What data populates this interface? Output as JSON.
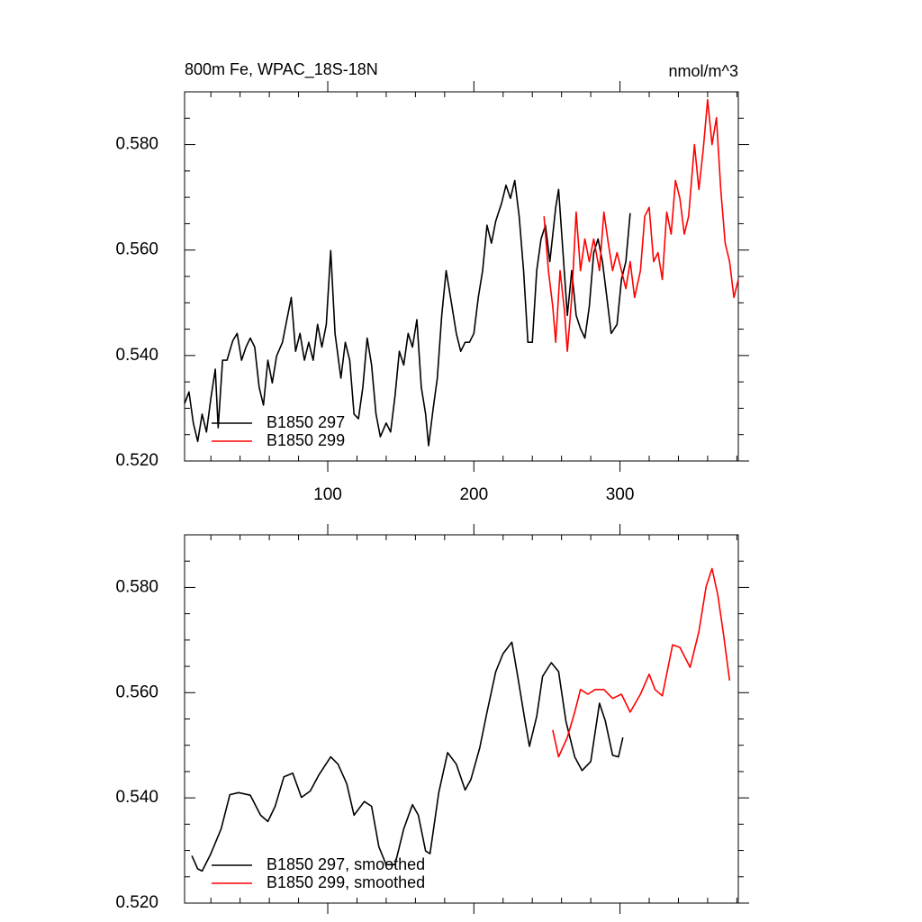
{
  "chart_data": [
    {
      "type": "line",
      "title": "800m Fe, WPAC_18S-18N",
      "units": "nmol/m^3",
      "xlim": [
        2,
        381
      ],
      "ylim": [
        0.52,
        0.59
      ],
      "xticks": [
        100,
        200,
        300
      ],
      "yticks": [
        {
          "value": 0.52,
          "label": "0.520"
        },
        {
          "value": 0.54,
          "label": "0.540"
        },
        {
          "value": 0.56,
          "label": "0.560"
        },
        {
          "value": 0.58,
          "label": "0.580"
        }
      ],
      "legend": "lower left",
      "series": [
        {
          "name": "B1850 297",
          "color": "#000000",
          "x": [
            2,
            5,
            8,
            11,
            14,
            17,
            20,
            23,
            25,
            28,
            31,
            35,
            38,
            41,
            44,
            47,
            50,
            53,
            56,
            59,
            62,
            65,
            69,
            72,
            75,
            78,
            81,
            84,
            87,
            90,
            93,
            96,
            99,
            102,
            105,
            109,
            112,
            115,
            118,
            121,
            124,
            127,
            130,
            133,
            136,
            140,
            143,
            146,
            149,
            152,
            155,
            158,
            161,
            164,
            167,
            169,
            172,
            175,
            178,
            181,
            185,
            188,
            191,
            194,
            197,
            200,
            203,
            206,
            209,
            212,
            215,
            219,
            222,
            225,
            228,
            231,
            234,
            237,
            240,
            243,
            246,
            249,
            252,
            256,
            258,
            261,
            264,
            267,
            270,
            273,
            276,
            279,
            282,
            285,
            288,
            291,
            294,
            298,
            301,
            304,
            307
          ],
          "values": [
            0.5309,
            0.5331,
            0.5272,
            0.5237,
            0.5289,
            0.5255,
            0.5319,
            0.5374,
            0.5263,
            0.5391,
            0.5391,
            0.5428,
            0.5442,
            0.5391,
            0.5416,
            0.5433,
            0.5416,
            0.534,
            0.5306,
            0.5391,
            0.5348,
            0.5399,
            0.5425,
            0.5468,
            0.551,
            0.5408,
            0.5442,
            0.5391,
            0.5425,
            0.5391,
            0.5459,
            0.5416,
            0.5459,
            0.5599,
            0.5442,
            0.5357,
            0.5425,
            0.5391,
            0.5289,
            0.528,
            0.534,
            0.5433,
            0.5382,
            0.5289,
            0.5246,
            0.5272,
            0.5255,
            0.5323,
            0.5408,
            0.5382,
            0.5442,
            0.5416,
            0.5468,
            0.534,
            0.5289,
            0.5229,
            0.5297,
            0.5357,
            0.5476,
            0.5561,
            0.5493,
            0.5442,
            0.5408,
            0.5425,
            0.5425,
            0.5442,
            0.551,
            0.5561,
            0.5647,
            0.5613,
            0.5655,
            0.5689,
            0.5723,
            0.5698,
            0.5732,
            0.5664,
            0.5561,
            0.5425,
            0.5425,
            0.5561,
            0.5621,
            0.5647,
            0.5578,
            0.5681,
            0.5715,
            0.5595,
            0.5476,
            0.5561,
            0.5476,
            0.5451,
            0.5433,
            0.5493,
            0.5595,
            0.5621,
            0.5578,
            0.551,
            0.5442,
            0.5459,
            0.5544,
            0.5578,
            0.567
          ]
        },
        {
          "name": "B1850 299",
          "color": "#ff0000",
          "x": [
            248,
            251,
            254,
            256,
            259,
            262,
            264,
            267,
            270,
            273,
            276,
            279,
            282,
            286,
            289,
            292,
            295,
            298,
            301,
            304,
            307,
            310,
            314,
            317,
            320,
            323,
            326,
            329,
            332,
            335,
            338,
            341,
            344,
            347,
            351,
            354,
            357,
            360,
            363,
            366,
            369,
            372,
            375,
            378,
            381
          ],
          "values": [
            0.5664,
            0.5561,
            0.5493,
            0.5425,
            0.5561,
            0.5485,
            0.5408,
            0.551,
            0.5672,
            0.5561,
            0.5621,
            0.5578,
            0.5621,
            0.5561,
            0.5672,
            0.5613,
            0.5561,
            0.5595,
            0.5561,
            0.5527,
            0.5578,
            0.551,
            0.5561,
            0.5664,
            0.5681,
            0.5578,
            0.5595,
            0.5544,
            0.5672,
            0.563,
            0.5732,
            0.5698,
            0.563,
            0.5664,
            0.58,
            0.5715,
            0.5792,
            0.5885,
            0.58,
            0.5851,
            0.5715,
            0.5613,
            0.5578,
            0.551,
            0.5544
          ]
        }
      ]
    },
    {
      "type": "line",
      "xlim": [
        2,
        381
      ],
      "ylim": [
        0.52,
        0.59
      ],
      "xticks": [
        100,
        200,
        300
      ],
      "yticks": [
        {
          "value": 0.52,
          "label": "0.520"
        },
        {
          "value": 0.54,
          "label": "0.540"
        },
        {
          "value": 0.56,
          "label": "0.560"
        },
        {
          "value": 0.58,
          "label": "0.580"
        }
      ],
      "legend": "lower left",
      "series": [
        {
          "name": "B1850 297, smoothed",
          "color": "#000000",
          "x": [
            7,
            11,
            14,
            20,
            27,
            33,
            39,
            47,
            54,
            59,
            64,
            70,
            76,
            82,
            88,
            94,
            102,
            107,
            113,
            118,
            125,
            130,
            135,
            140,
            146,
            152,
            158,
            162,
            167,
            170,
            176,
            182,
            188,
            194,
            198,
            204,
            209,
            215,
            220,
            226,
            230,
            235,
            238,
            243,
            247,
            253,
            258,
            263,
            269,
            274,
            280,
            286,
            290,
            295,
            299,
            302
          ],
          "values": [
            0.529,
            0.5265,
            0.5261,
            0.5294,
            0.5341,
            0.5406,
            0.541,
            0.5405,
            0.5367,
            0.5355,
            0.5384,
            0.544,
            0.5447,
            0.5401,
            0.5413,
            0.5444,
            0.5478,
            0.5464,
            0.5427,
            0.5367,
            0.5393,
            0.5384,
            0.5307,
            0.5273,
            0.5273,
            0.5341,
            0.5387,
            0.5367,
            0.5299,
            0.5294,
            0.541,
            0.5486,
            0.5464,
            0.5415,
            0.5435,
            0.5495,
            0.5563,
            0.564,
            0.5674,
            0.5696,
            0.5631,
            0.5546,
            0.5498,
            0.5555,
            0.5631,
            0.5657,
            0.564,
            0.5546,
            0.5478,
            0.5452,
            0.5469,
            0.558,
            0.5546,
            0.5481,
            0.5478,
            0.5515
          ]
        },
        {
          "name": "B1850 299, smoothed",
          "color": "#ff0000",
          "x": [
            254,
            258,
            264,
            269,
            273,
            278,
            283,
            289,
            295,
            301,
            307,
            314,
            320,
            324,
            329,
            336,
            341,
            348,
            354,
            359,
            363,
            367,
            371,
            375
          ],
          "values": [
            0.5529,
            0.5478,
            0.5515,
            0.5563,
            0.5606,
            0.5597,
            0.5606,
            0.5606,
            0.5589,
            0.5597,
            0.5563,
            0.5597,
            0.5635,
            0.5606,
            0.5594,
            0.5691,
            0.5686,
            0.5648,
            0.5716,
            0.5802,
            0.5836,
            0.5785,
            0.5708,
            0.5623
          ]
        }
      ]
    }
  ]
}
